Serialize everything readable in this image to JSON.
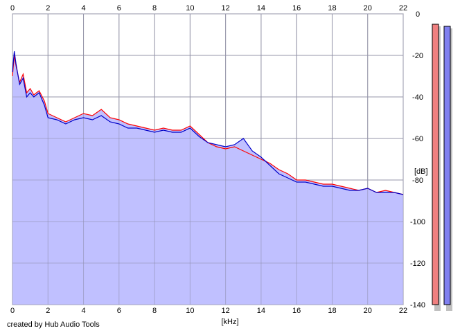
{
  "footer_text": "created by Hub Audio Tools",
  "chart_data": {
    "type": "area",
    "xlabel": "[kHz]",
    "ylabel": "[dB]",
    "xlim": [
      0,
      22
    ],
    "ylim": [
      -140,
      0
    ],
    "x_ticks": [
      "0",
      "2",
      "4",
      "6",
      "8",
      "10",
      "12",
      "14",
      "16",
      "18",
      "20",
      "22"
    ],
    "y_ticks": [
      "0",
      "-20",
      "-40",
      "-60",
      "-80",
      "-100",
      "-120",
      "-140"
    ],
    "grid": true,
    "colors": {
      "fill": "#c0c0ff",
      "left_channel": "#ff0000",
      "right_channel": "#0000c8",
      "grid": "#a0a0a0",
      "meter_left": "#f08080",
      "meter_right": "#8080f0"
    },
    "series": [
      {
        "x": [
          0,
          0.1,
          0.2,
          0.4,
          0.6,
          0.8,
          1.0,
          1.2,
          1.5,
          1.8,
          2.0,
          2.5,
          3.0,
          3.5,
          4.0,
          4.5,
          5.0,
          5.5,
          6.0,
          6.5,
          7.0,
          7.5,
          8.0,
          8.5,
          9.0,
          9.5,
          10.0,
          10.5,
          11.0,
          11.5,
          12.0,
          12.5,
          13.0,
          13.5,
          14.0,
          14.5,
          15.0,
          15.5,
          16.0,
          16.5,
          17.0,
          17.5,
          18.0,
          18.5,
          19.0,
          19.5,
          20.0,
          20.5,
          21.0,
          21.5,
          22.0
        ],
        "values": [
          -30,
          -20,
          -25,
          -33,
          -29,
          -38,
          -36,
          -39,
          -37,
          -42,
          -48,
          -50,
          -52,
          -50,
          -48,
          -49,
          -46,
          -50,
          -51,
          -53,
          -54,
          -55,
          -56,
          -55,
          -56,
          -56,
          -54,
          -58,
          -62,
          -64,
          -65,
          -64,
          -66,
          -68,
          -70,
          -72,
          -75,
          -77,
          -80,
          -80,
          -81,
          -82,
          -82,
          -83,
          -84,
          -85,
          -84,
          -86,
          -85,
          -86,
          -87
        ]
      },
      {
        "x": [
          0,
          0.1,
          0.2,
          0.4,
          0.6,
          0.8,
          1.0,
          1.2,
          1.5,
          1.8,
          2.0,
          2.5,
          3.0,
          3.5,
          4.0,
          4.5,
          5.0,
          5.5,
          6.0,
          6.5,
          7.0,
          7.5,
          8.0,
          8.5,
          9.0,
          9.5,
          10.0,
          10.5,
          11.0,
          11.5,
          12.0,
          12.5,
          13.0,
          13.5,
          14.0,
          14.5,
          15.0,
          15.5,
          16.0,
          16.5,
          17.0,
          17.5,
          18.0,
          18.5,
          19.0,
          19.5,
          20.0,
          20.5,
          21.0,
          21.5,
          22.0
        ],
        "values": [
          -28,
          -18,
          -24,
          -34,
          -31,
          -40,
          -38,
          -40,
          -38,
          -44,
          -50,
          -51,
          -53,
          -51,
          -50,
          -51,
          -49,
          -52,
          -53,
          -55,
          -55,
          -56,
          -57,
          -56,
          -57,
          -57,
          -55,
          -59,
          -62,
          -63,
          -64,
          -63,
          -60,
          -66,
          -69,
          -73,
          -77,
          -79,
          -81,
          -81,
          -82,
          -83,
          -83,
          -84,
          -85,
          -85,
          -84,
          -86,
          -86,
          -86,
          -87
        ]
      }
    ],
    "meters": [
      {
        "value_db": -5
      },
      {
        "value_db": -6
      }
    ]
  }
}
